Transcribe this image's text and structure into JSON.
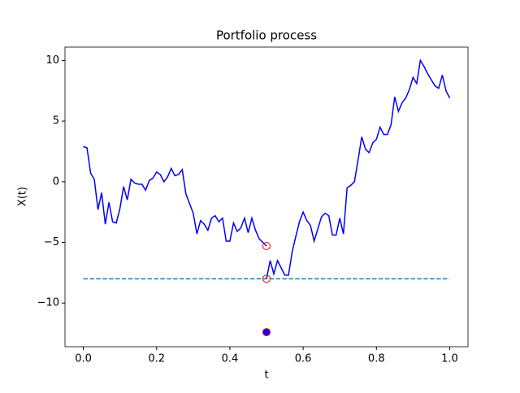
{
  "chart_data": {
    "type": "line",
    "title": "Portfolio process",
    "x_label": "t",
    "y_label": "X(t)",
    "xlim": [
      -0.05,
      1.05
    ],
    "ylim": [
      -13.6,
      11.1
    ],
    "xticks": [
      {
        "value": 0,
        "label": "0.0"
      },
      {
        "value": 0.2,
        "label": "0.2"
      },
      {
        "value": 0.4,
        "label": "0.4"
      },
      {
        "value": 0.6,
        "label": "0.6"
      },
      {
        "value": 0.8,
        "label": "0.8"
      },
      {
        "value": 1,
        "label": "1.0"
      }
    ],
    "yticks": [
      {
        "value": -10,
        "label": "−10"
      },
      {
        "value": -5,
        "label": "−5"
      },
      0,
      5,
      10
    ],
    "series": [
      {
        "color": "#0000ff",
        "style": "solid",
        "x": [
          0,
          0.01,
          0.02,
          0.03,
          0.04,
          0.05,
          0.06,
          0.07,
          0.08,
          0.09,
          0.1,
          0.11,
          0.12,
          0.13,
          0.14,
          0.15,
          0.16,
          0.17,
          0.18,
          0.19,
          0.2,
          0.21,
          0.22,
          0.23,
          0.24,
          0.25,
          0.26,
          0.27,
          0.28,
          0.29,
          0.3,
          0.31,
          0.32,
          0.33,
          0.34,
          0.35,
          0.36,
          0.37,
          0.38,
          0.39,
          0.4,
          0.41,
          0.42,
          0.43,
          0.44,
          0.45,
          0.46,
          0.47,
          0.48,
          0.49,
          0.5
        ],
        "values": [
          2.9,
          2.8,
          0.7,
          0.2,
          -2.3,
          -0.9,
          -3.5,
          -1.7,
          -3.3,
          -3.4,
          -2.2,
          -0.4,
          -1.5,
          0.2,
          -0.1,
          -0.2,
          -0.2,
          -0.7,
          0.1,
          0.3,
          0.8,
          0.6,
          0.0,
          0.4,
          1.1,
          0.5,
          0.6,
          1.0,
          -1.0,
          -1.8,
          -2.6,
          -4.3,
          -3.2,
          -3.5,
          -4.0,
          -3.0,
          -2.8,
          -3.3,
          -3.0,
          -4.9,
          -4.9,
          -3.4,
          -4.1,
          -3.8,
          -3.0,
          -4.2,
          -3.0,
          -4.0,
          -4.7,
          -5.0,
          -5.3
        ]
      },
      {
        "color": "#0000ff",
        "style": "solid",
        "x": [
          0.5,
          0.51,
          0.52,
          0.53,
          0.54,
          0.55,
          0.56,
          0.57,
          0.58,
          0.59,
          0.6,
          0.61,
          0.62,
          0.63,
          0.64,
          0.65,
          0.66,
          0.67,
          0.68,
          0.69,
          0.7,
          0.71,
          0.72,
          0.73,
          0.74,
          0.75,
          0.76,
          0.77,
          0.78,
          0.79,
          0.8,
          0.81,
          0.82,
          0.83,
          0.84,
          0.85,
          0.86,
          0.87,
          0.88,
          0.89,
          0.9,
          0.91,
          0.92,
          0.93,
          0.94,
          0.95,
          0.96,
          0.97,
          0.98,
          0.99,
          1
        ],
        "values": [
          -8.0,
          -6.5,
          -7.6,
          -6.5,
          -7.1,
          -7.7,
          -7.7,
          -5.8,
          -4.5,
          -3.3,
          -2.5,
          -3.2,
          -3.6,
          -4.9,
          -3.9,
          -2.9,
          -2.6,
          -2.8,
          -4.4,
          -4.4,
          -3.0,
          -4.3,
          -0.5,
          -0.3,
          0.0,
          1.8,
          3.7,
          2.7,
          2.4,
          3.2,
          3.5,
          4.5,
          3.9,
          3.9,
          4.7,
          7.0,
          5.8,
          6.5,
          6.9,
          7.6,
          8.6,
          8.1,
          10.0,
          9.5,
          8.9,
          8.4,
          7.9,
          7.7,
          8.8,
          7.5,
          6.9
        ]
      },
      {
        "color": "#1f77b4",
        "style": "dashed",
        "x": [
          0,
          1
        ],
        "values": [
          -8,
          -8
        ]
      }
    ],
    "points": [
      {
        "x": 0.5,
        "y": -5.3,
        "edge": "#ff0000",
        "fill": "none"
      },
      {
        "x": 0.5,
        "y": -8,
        "edge": "#ff0000",
        "fill": "none"
      },
      {
        "x": 0.5,
        "y": -12.4,
        "edge": "#ff0000",
        "fill": "#0000ff"
      }
    ]
  }
}
